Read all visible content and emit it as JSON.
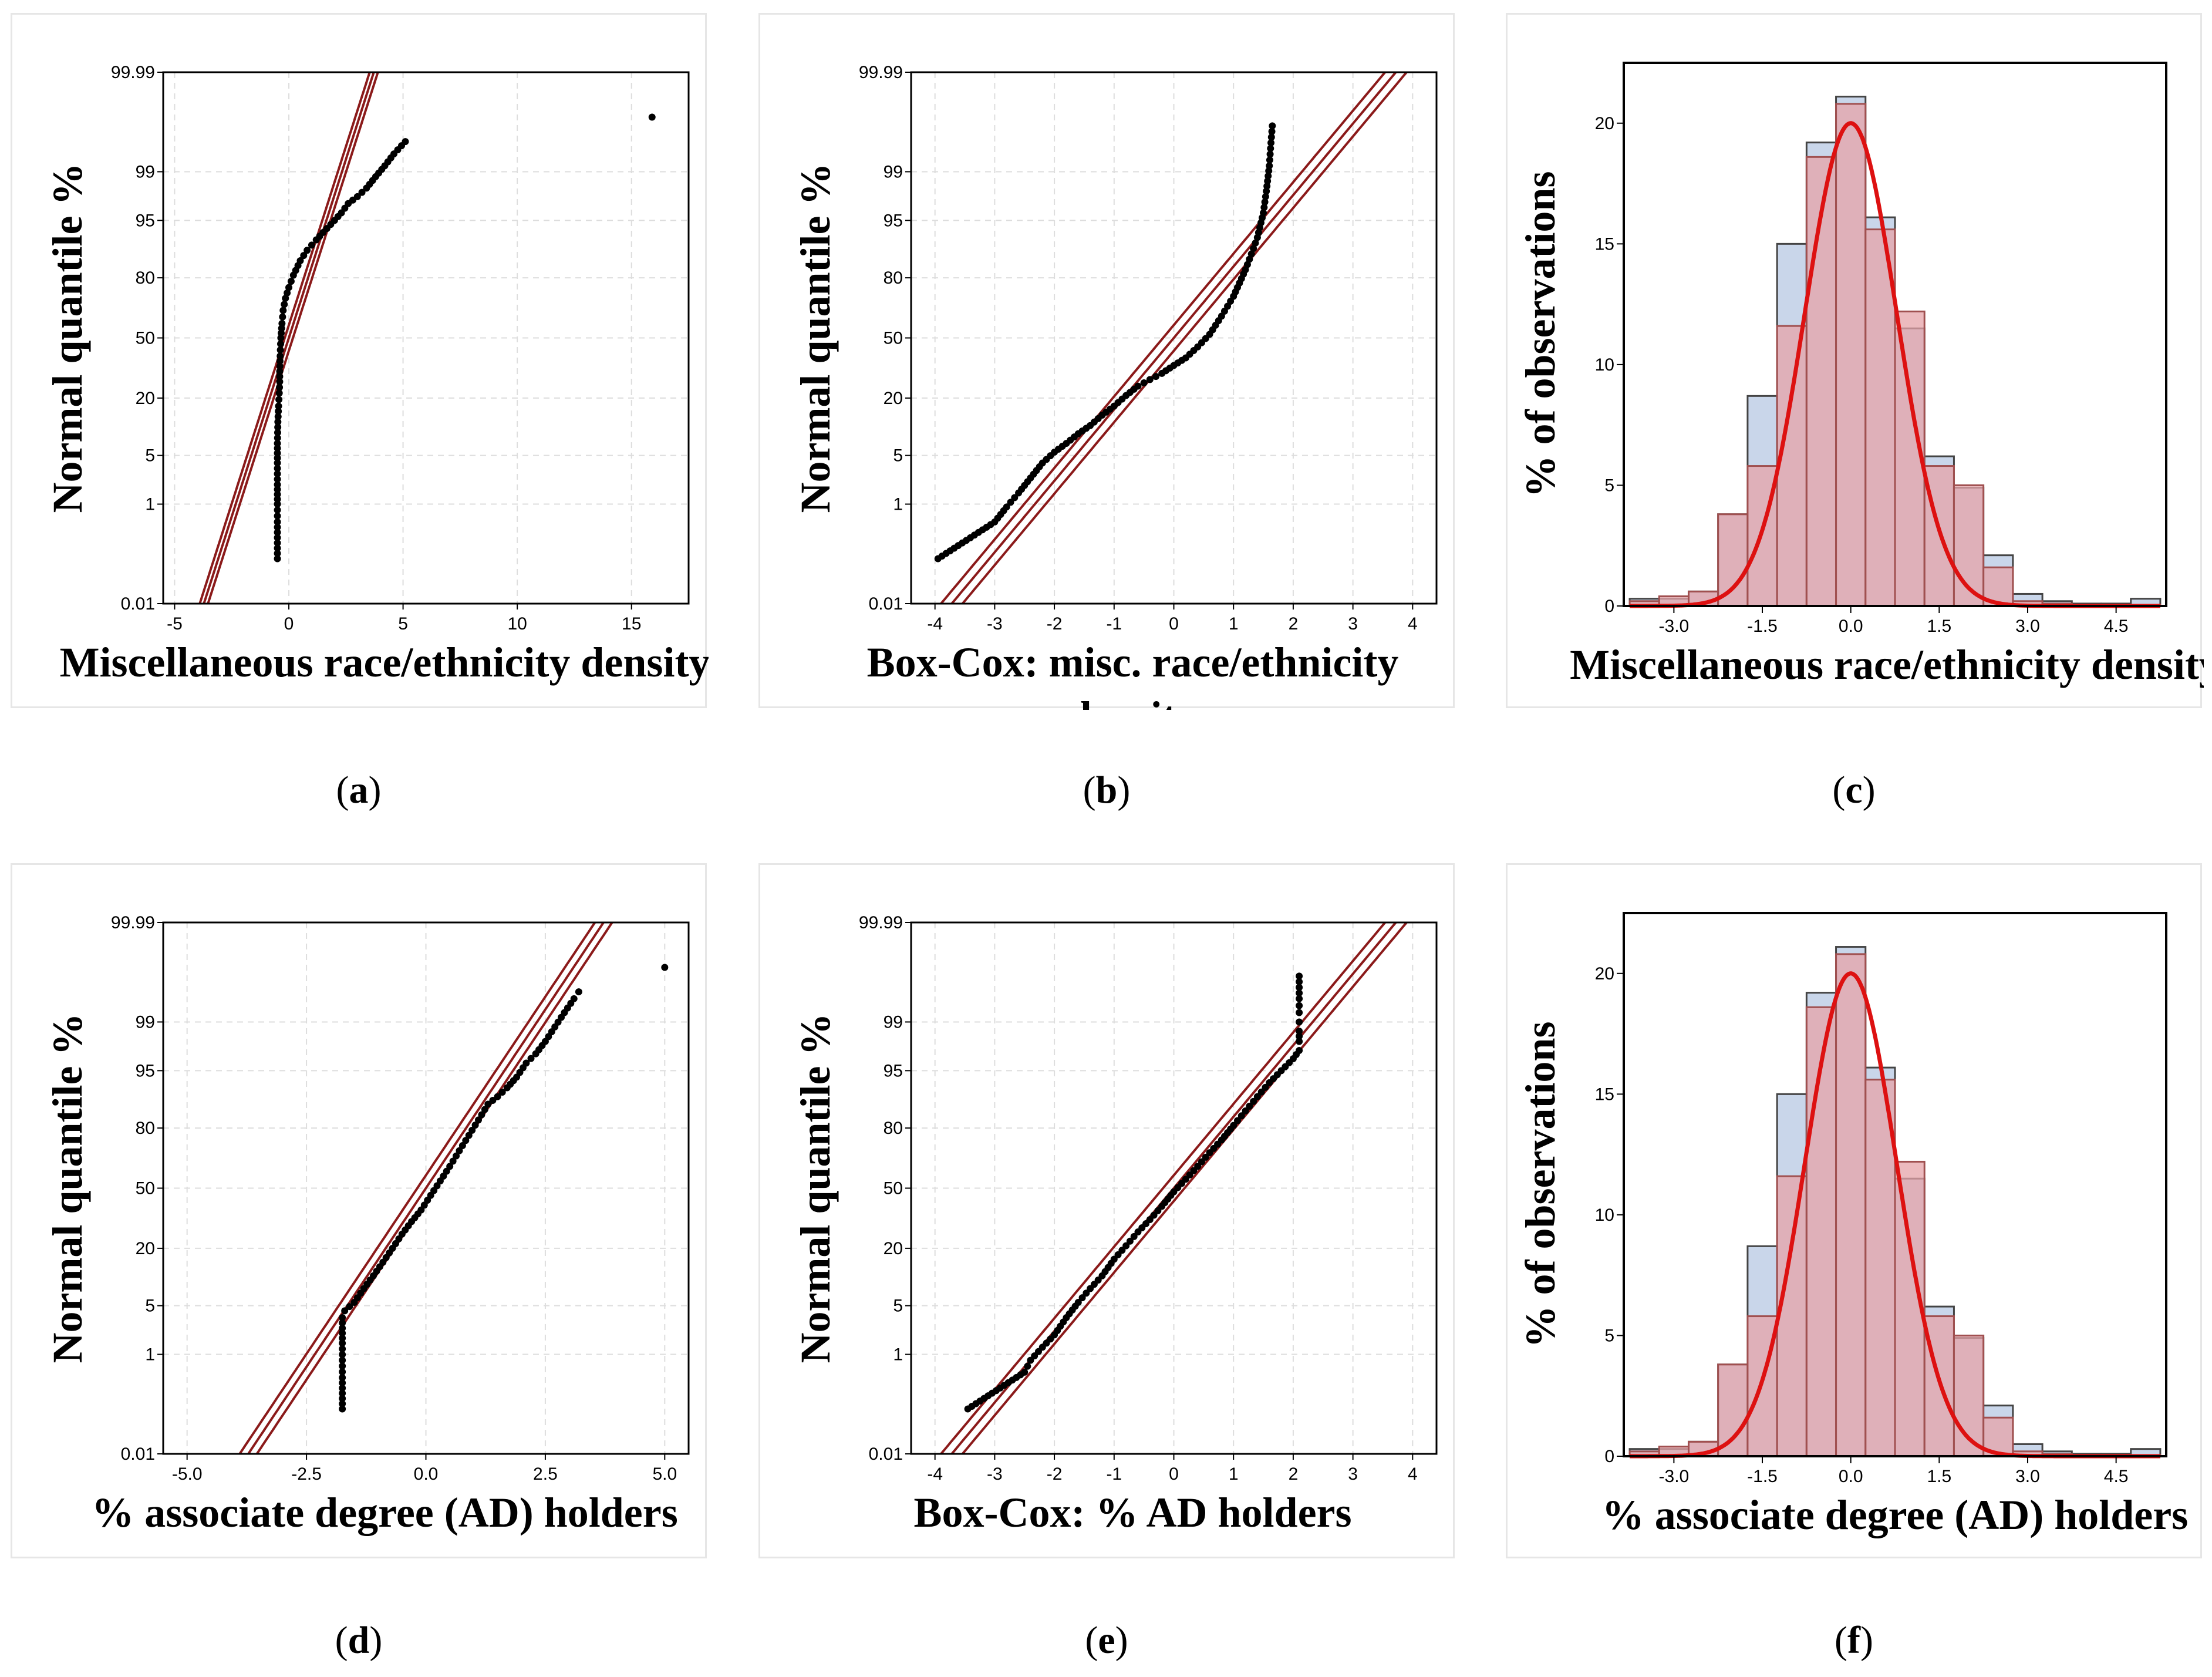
{
  "panels": [
    {
      "id": "a",
      "type": "qq",
      "ylabel": "Normal quantile %",
      "xlabel": [
        "Miscellaneous race/ethnicity density"
      ],
      "xlim": [
        -5.5,
        17.5
      ],
      "xticks": [
        -5,
        0,
        5,
        10,
        15
      ],
      "xtick_labels": [
        "-5",
        "0",
        "5",
        "10",
        "15"
      ],
      "yticks": [
        0.01,
        1,
        5,
        20,
        50,
        80,
        95,
        99,
        99.99
      ],
      "ytick_labels": [
        "0.01",
        "1",
        "5",
        "20",
        "50",
        "80",
        "95",
        "99",
        "99.99"
      ],
      "ref_line": {
        "mean": 0,
        "sd": 1
      },
      "points": [
        [
          -0.5,
          0.1
        ],
        [
          -0.5,
          0.5
        ],
        [
          -0.5,
          1
        ],
        [
          -0.5,
          2
        ],
        [
          -0.5,
          4
        ],
        [
          -0.5,
          7
        ],
        [
          -0.48,
          12
        ],
        [
          -0.45,
          17
        ],
        [
          -0.42,
          22
        ],
        [
          -0.4,
          27
        ],
        [
          -0.4,
          32
        ],
        [
          -0.38,
          40
        ],
        [
          -0.35,
          50
        ],
        [
          -0.3,
          58
        ],
        [
          -0.25,
          65
        ],
        [
          -0.15,
          71
        ],
        [
          0,
          76
        ],
        [
          0.2,
          81
        ],
        [
          0.5,
          86
        ],
        [
          0.8,
          89
        ],
        [
          1.2,
          91.5
        ],
        [
          1.5,
          93
        ],
        [
          2,
          95
        ],
        [
          2.3,
          96
        ],
        [
          2.6,
          97
        ],
        [
          3,
          97.6
        ],
        [
          3.4,
          98.2
        ],
        [
          3.8,
          98.8
        ],
        [
          4.2,
          99.2
        ],
        [
          4.6,
          99.5
        ],
        [
          5.1,
          99.7
        ],
        [
          15.9,
          99.9
        ]
      ]
    },
    {
      "id": "b",
      "type": "qq",
      "ylabel": "Normal quantile %",
      "xlabel": [
        "Box-Cox: misc. race/ethnicity",
        "density"
      ],
      "xlim": [
        -4.4,
        4.4
      ],
      "xticks": [
        -4,
        -3,
        -2,
        -1,
        0,
        1,
        2,
        3,
        4
      ],
      "xtick_labels": [
        "-4",
        "-3",
        "-2",
        "-1",
        "0",
        "1",
        "2",
        "3",
        "4"
      ],
      "yticks": [
        0.01,
        1,
        5,
        20,
        50,
        80,
        95,
        99,
        99.99
      ],
      "ytick_labels": [
        "0.01",
        "1",
        "5",
        "20",
        "50",
        "80",
        "95",
        "99",
        "99.99"
      ],
      "ref_line": {
        "mean": 0,
        "sd": 1
      },
      "points": [
        [
          -3.95,
          0.1
        ],
        [
          -3,
          0.5
        ],
        [
          -2.8,
          0.9
        ],
        [
          -2.6,
          1.5
        ],
        [
          -2.4,
          2.5
        ],
        [
          -2.2,
          4
        ],
        [
          -2,
          5.5
        ],
        [
          -1.8,
          7
        ],
        [
          -1.6,
          9
        ],
        [
          -1.4,
          11
        ],
        [
          -1.2,
          14
        ],
        [
          -1,
          17
        ],
        [
          -0.8,
          21
        ],
        [
          -0.6,
          25
        ],
        [
          -0.4,
          28
        ],
        [
          -0.2,
          31
        ],
        [
          0,
          35
        ],
        [
          0.2,
          39
        ],
        [
          0.4,
          45
        ],
        [
          0.6,
          52
        ],
        [
          0.8,
          62
        ],
        [
          1,
          72
        ],
        [
          1.2,
          83
        ],
        [
          1.3,
          88
        ],
        [
          1.4,
          92
        ],
        [
          1.5,
          96
        ],
        [
          1.55,
          98
        ],
        [
          1.6,
          99.2
        ],
        [
          1.62,
          99.6
        ],
        [
          1.65,
          99.85
        ]
      ]
    },
    {
      "id": "c",
      "type": "hist",
      "ylabel": "% of observations",
      "xlabel": [
        "Miscellaneous race/ethnicity density"
      ],
      "xlim": [
        -3.85,
        5.35
      ],
      "ylim": [
        0,
        22.5
      ],
      "xticks": [
        -3,
        -1.5,
        0,
        1.5,
        3,
        4.5
      ],
      "xtick_labels": [
        "-3.0",
        "-1.5",
        "0.0",
        "1.5",
        "3.0",
        "4.5"
      ],
      "yticks": [
        0,
        5,
        10,
        15,
        20
      ],
      "ytick_labels": [
        "0",
        "5",
        "10",
        "15",
        "20"
      ],
      "bin_edges": [
        -3.75,
        -3.25,
        -2.75,
        -2.25,
        -1.75,
        -1.25,
        -0.75,
        -0.25,
        0.25,
        0.75,
        1.25,
        1.75,
        2.25,
        2.75,
        3.25,
        3.75,
        4.25,
        4.75,
        5.25
      ],
      "blue": [
        0.3,
        0.3,
        0.6,
        3.8,
        8.7,
        15,
        19.2,
        21.1,
        16.1,
        11.5,
        6.2,
        4.9,
        2.1,
        0.5,
        0.2,
        0.1,
        0.1,
        0.3
      ],
      "red": [
        0.2,
        0.4,
        0.6,
        3.8,
        5.8,
        11.6,
        18.6,
        20.8,
        15.6,
        12.2,
        5.8,
        5,
        1.6,
        0.2,
        0.1,
        0.05,
        0.05,
        0.05
      ],
      "curve": {
        "mean": 0,
        "sd": 0.78,
        "peak": 20
      }
    },
    {
      "id": "d",
      "type": "qq",
      "ylabel": "Normal quantile %",
      "xlabel": [
        "% associate degree (AD) holders"
      ],
      "xlim": [
        -5.5,
        5.5
      ],
      "xticks": [
        -5,
        -2.5,
        0,
        2.5,
        5
      ],
      "xtick_labels": [
        "-5.0",
        "-2.5",
        "0.0",
        "2.5",
        "5.0"
      ],
      "yticks": [
        0.01,
        1,
        5,
        20,
        50,
        80,
        95,
        99,
        99.99
      ],
      "ytick_labels": [
        "0.01",
        "1",
        "5",
        "20",
        "50",
        "80",
        "95",
        "99",
        "99.99"
      ],
      "ref_line": {
        "mean": 0,
        "sd": 1
      },
      "points": [
        [
          -1.75,
          0.1
        ],
        [
          -1.75,
          0.4
        ],
        [
          -1.75,
          0.8
        ],
        [
          -1.75,
          1.5
        ],
        [
          -1.75,
          2.5
        ],
        [
          -1.75,
          3.5
        ],
        [
          -1.7,
          4.3
        ],
        [
          -1.5,
          5.5
        ],
        [
          -1.3,
          8
        ],
        [
          -1.1,
          11
        ],
        [
          -0.9,
          15
        ],
        [
          -0.7,
          20
        ],
        [
          -0.5,
          26
        ],
        [
          -0.3,
          32
        ],
        [
          -0.1,
          38
        ],
        [
          0.1,
          46
        ],
        [
          0.3,
          54
        ],
        [
          0.5,
          62
        ],
        [
          0.7,
          70
        ],
        [
          0.9,
          77
        ],
        [
          1.1,
          83
        ],
        [
          1.3,
          88
        ],
        [
          1.5,
          90
        ],
        [
          1.7,
          92
        ],
        [
          1.9,
          94
        ],
        [
          2.1,
          96
        ],
        [
          2.3,
          97
        ],
        [
          2.5,
          98
        ],
        [
          2.7,
          98.8
        ],
        [
          2.9,
          99.3
        ],
        [
          3.1,
          99.6
        ],
        [
          3.2,
          99.7
        ],
        [
          5,
          99.9
        ]
      ]
    },
    {
      "id": "e",
      "type": "qq",
      "ylabel": "Normal quantile %",
      "xlabel": [
        "Box-Cox: % AD holders"
      ],
      "xlim": [
        -4.4,
        4.4
      ],
      "xticks": [
        -4,
        -3,
        -2,
        -1,
        0,
        1,
        2,
        3,
        4
      ],
      "xtick_labels": [
        "-4",
        "-3",
        "-2",
        "-1",
        "0",
        "1",
        "2",
        "3",
        "4"
      ],
      "yticks": [
        0.01,
        1,
        5,
        20,
        50,
        80,
        95,
        99,
        99.99
      ],
      "ytick_labels": [
        "0.01",
        "1",
        "5",
        "20",
        "50",
        "80",
        "95",
        "99",
        "99.99"
      ],
      "ref_line": {
        "mean": 0,
        "sd": 1
      },
      "points": [
        [
          -3.45,
          0.1
        ],
        [
          -2.5,
          0.5
        ],
        [
          -2.4,
          0.8
        ],
        [
          -2.2,
          1.3
        ],
        [
          -2,
          2
        ],
        [
          -1.8,
          3.5
        ],
        [
          -1.6,
          5.5
        ],
        [
          -1.4,
          8
        ],
        [
          -1.2,
          11
        ],
        [
          -1,
          16
        ],
        [
          -0.8,
          21
        ],
        [
          -0.6,
          27
        ],
        [
          -0.4,
          33
        ],
        [
          -0.2,
          40
        ],
        [
          0,
          48
        ],
        [
          0.2,
          55
        ],
        [
          0.4,
          62
        ],
        [
          0.6,
          69
        ],
        [
          0.8,
          75
        ],
        [
          1,
          81
        ],
        [
          1.2,
          86
        ],
        [
          1.4,
          90
        ],
        [
          1.6,
          93
        ],
        [
          1.8,
          95
        ],
        [
          2,
          96.5
        ],
        [
          2.1,
          97.3
        ],
        [
          2.1,
          98
        ],
        [
          2.1,
          98.6
        ],
        [
          2.1,
          99
        ],
        [
          2.1,
          99.3
        ],
        [
          2.1,
          99.6
        ],
        [
          2.1,
          99.85
        ]
      ]
    },
    {
      "id": "f",
      "type": "hist",
      "ylabel": "% of observations",
      "xlabel": [
        "% associate degree (AD) holders"
      ],
      "xlim": [
        -3.85,
        5.35
      ],
      "ylim": [
        0,
        22.5
      ],
      "xticks": [
        -3,
        -1.5,
        0,
        1.5,
        3,
        4.5
      ],
      "xtick_labels": [
        "-3.0",
        "-1.5",
        "0.0",
        "1.5",
        "3.0",
        "4.5"
      ],
      "yticks": [
        0,
        5,
        10,
        15,
        20
      ],
      "ytick_labels": [
        "0",
        "5",
        "10",
        "15",
        "20"
      ],
      "bin_edges": [
        -3.75,
        -3.25,
        -2.75,
        -2.25,
        -1.75,
        -1.25,
        -0.75,
        -0.25,
        0.25,
        0.75,
        1.25,
        1.75,
        2.25,
        2.75,
        3.25,
        3.75,
        4.25,
        4.75,
        5.25
      ],
      "blue": [
        0.3,
        0.3,
        0.6,
        3.8,
        8.7,
        15,
        19.2,
        21.1,
        16.1,
        11.5,
        6.2,
        4.9,
        2.1,
        0.5,
        0.2,
        0.1,
        0.1,
        0.3
      ],
      "red": [
        0.2,
        0.4,
        0.6,
        3.8,
        5.8,
        11.6,
        18.6,
        20.8,
        15.6,
        12.2,
        5.8,
        5,
        1.6,
        0.2,
        0.1,
        0.05,
        0.05,
        0.05
      ],
      "curve": {
        "mean": 0,
        "sd": 0.78,
        "peak": 20
      }
    }
  ],
  "captions": [
    "(a)",
    "(b)",
    "(c)",
    "(d)",
    "(e)",
    "(f)"
  ],
  "caption_letters": [
    "a",
    "b",
    "c",
    "d",
    "e",
    "f"
  ],
  "colors": {
    "ref_line": "#8b1a1a",
    "points": "#000000",
    "blue_bar": "#c9d6ea",
    "red_bar": "#e6a3a8",
    "curve": "#dd1111",
    "grid": "#dddddd"
  }
}
